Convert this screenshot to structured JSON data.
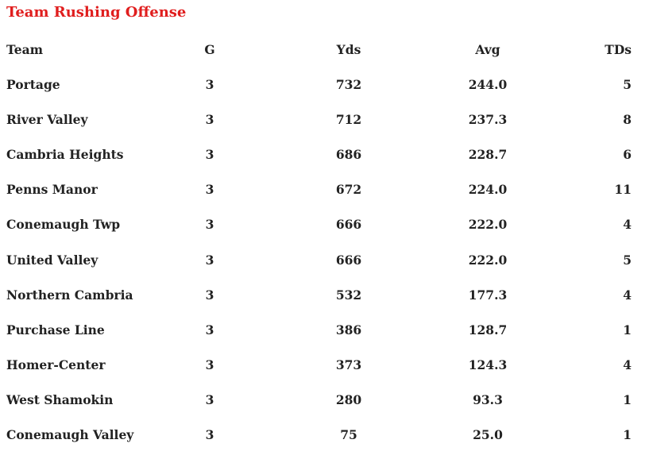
{
  "title": "Team Rushing Offense",
  "colors": {
    "title": "#e01e1e",
    "text": "#222222"
  },
  "table": {
    "headers": {
      "team": "Team",
      "g": "G",
      "yds": "Yds",
      "avg": "Avg",
      "tds": "TDs"
    },
    "rows": [
      {
        "team": "Portage",
        "g": "3",
        "yds": "732",
        "avg": "244.0",
        "tds": "5"
      },
      {
        "team": "River Valley",
        "g": "3",
        "yds": "712",
        "avg": "237.3",
        "tds": "8"
      },
      {
        "team": "Cambria Heights",
        "g": "3",
        "yds": "686",
        "avg": "228.7",
        "tds": "6"
      },
      {
        "team": "Penns Manor",
        "g": "3",
        "yds": "672",
        "avg": "224.0",
        "tds": "11"
      },
      {
        "team": "Conemaugh Twp",
        "g": "3",
        "yds": "666",
        "avg": "222.0",
        "tds": "4"
      },
      {
        "team": "United Valley",
        "g": "3",
        "yds": "666",
        "avg": "222.0",
        "tds": "5"
      },
      {
        "team": "Northern Cambria",
        "g": "3",
        "yds": "532",
        "avg": "177.3",
        "tds": "4"
      },
      {
        "team": "Purchase Line",
        "g": "3",
        "yds": "386",
        "avg": "128.7",
        "tds": "1"
      },
      {
        "team": "Homer-Center",
        "g": "3",
        "yds": "373",
        "avg": "124.3",
        "tds": "4"
      },
      {
        "team": "West Shamokin",
        "g": "3",
        "yds": "280",
        "avg": "93.3",
        "tds": "1"
      },
      {
        "team": "Conemaugh Valley",
        "g": "3",
        "yds": "75",
        "avg": "25.0",
        "tds": "1"
      }
    ]
  }
}
